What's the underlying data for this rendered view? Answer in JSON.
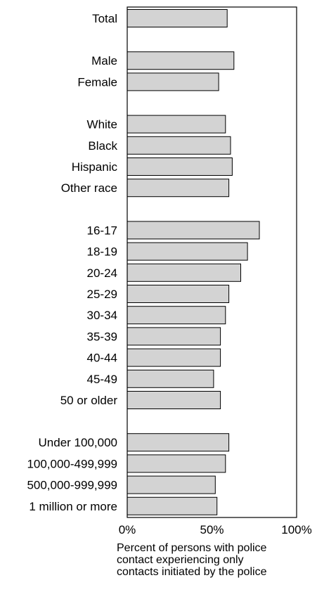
{
  "chart_data": {
    "type": "bar",
    "orientation": "horizontal",
    "title": "",
    "xlabel_lines": [
      "Percent of persons with police",
      "contact experiencing only",
      "contacts initiated by the police"
    ],
    "ylabel": "",
    "xlim": [
      0,
      100
    ],
    "x_ticks": [
      "0%",
      "50%",
      "100%"
    ],
    "bar_color": "#d3d3d3",
    "grid": false,
    "groups": [
      {
        "categories": [
          "Total"
        ],
        "values": [
          59
        ]
      },
      {
        "categories": [
          "Male",
          "Female"
        ],
        "values": [
          63,
          54
        ]
      },
      {
        "categories": [
          "White",
          "Black",
          "Hispanic",
          "Other race"
        ],
        "values": [
          58,
          61,
          62,
          60
        ]
      },
      {
        "categories": [
          "16-17",
          "18-19",
          "20-24",
          "25-29",
          "30-34",
          "35-39",
          "40-44",
          "45-49",
          "50 or older"
        ],
        "values": [
          78,
          71,
          67,
          60,
          58,
          55,
          55,
          51,
          55
        ]
      },
      {
        "categories": [
          "Under 100,000",
          "100,000-499,999",
          "500,000-999,999",
          "1 million or more"
        ],
        "values": [
          60,
          58,
          52,
          53
        ]
      }
    ]
  }
}
